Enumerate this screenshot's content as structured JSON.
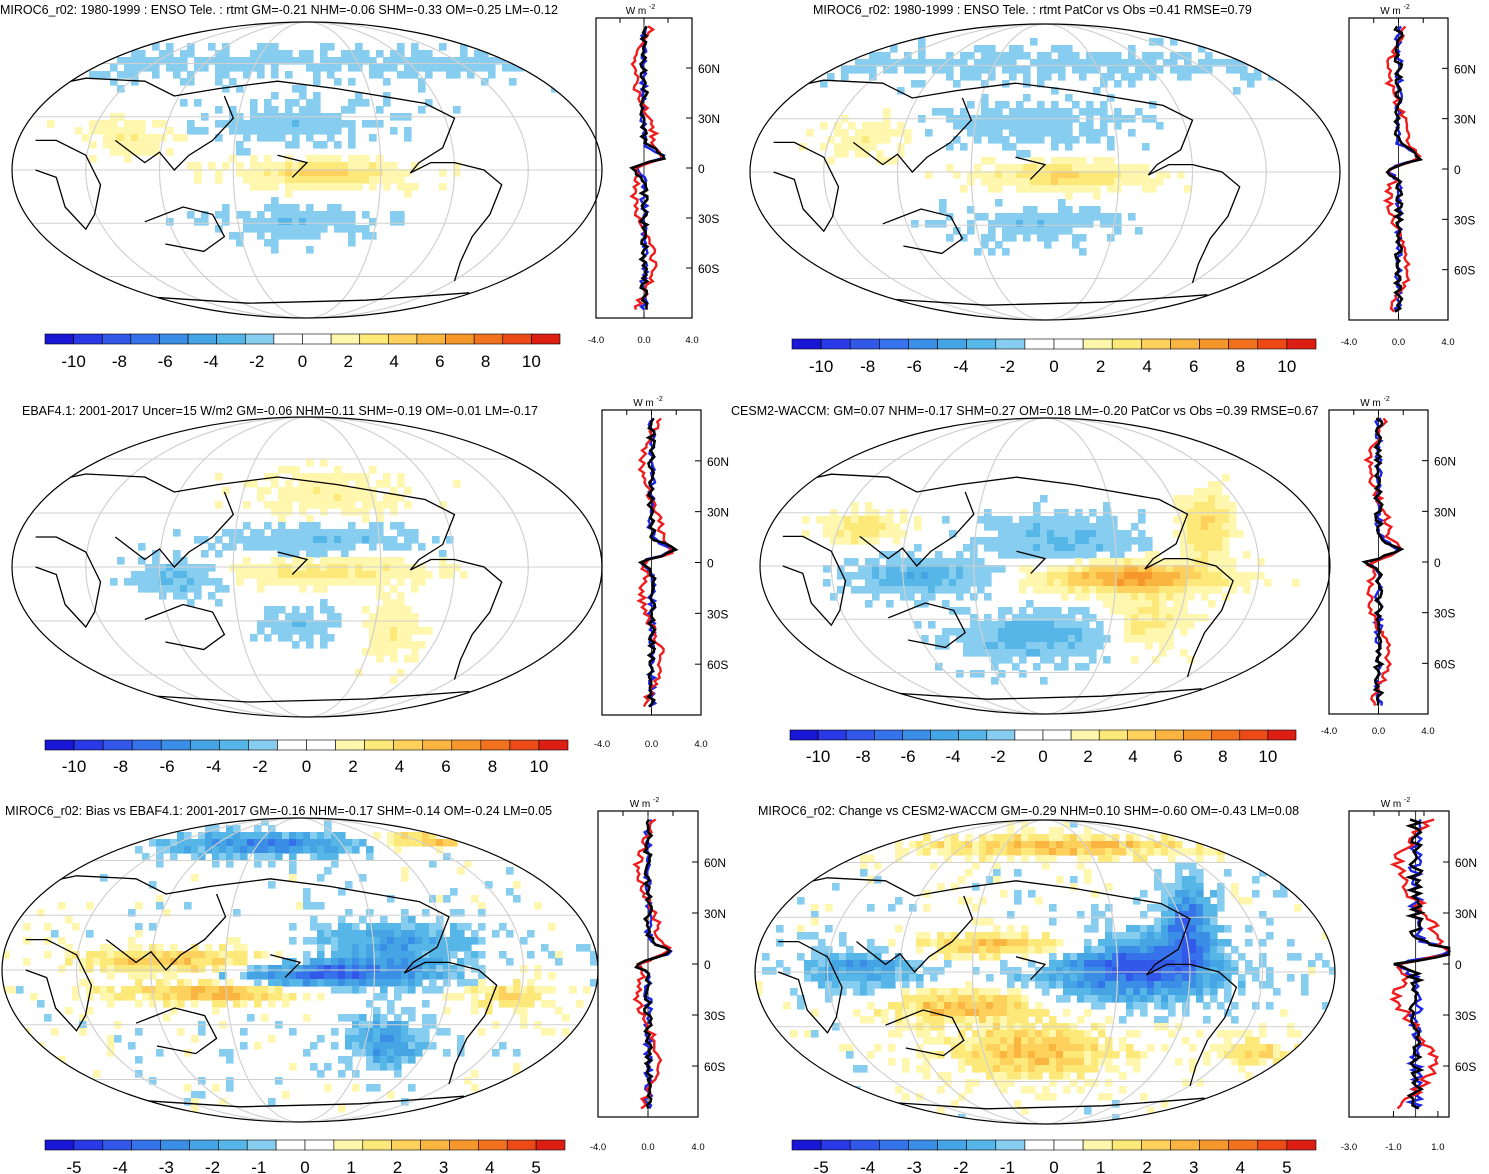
{
  "colors": {
    "levels": [
      "#1a16d6",
      "#2a39e6",
      "#3158e8",
      "#3673ea",
      "#3a8ee6",
      "#44a4e4",
      "#55b6e7",
      "#87cdf0",
      "#ffffff",
      "#ffffff",
      "#fff7ad",
      "#fde87a",
      "#fdd15c",
      "#f9b53f",
      "#f6972c",
      "#f2711f",
      "#ec4b17",
      "#dc1e13"
    ],
    "ocean": "#ffffff",
    "land_outline": "#000000",
    "grid": "#d0d0d0",
    "profile_black": "#000000",
    "profile_red": "#ee1c1c",
    "profile_blue": "#1c24e4"
  },
  "chart_data": [
    {
      "type": "heatmap",
      "id": "p1",
      "title": "MIROC6_r02: 1980-1999 : ENSO Tele. : rtmt GM=-0.21 NHM=-0.06 SHM=-0.33 OM=-0.25 LM=-0.12",
      "colorbar_ticks": [
        "-10",
        "-8",
        "-6",
        "-4",
        "-2",
        "0",
        "2",
        "4",
        "6",
        "8",
        "10"
      ],
      "profile": {
        "unit": "W m",
        "unit_sup": "-2",
        "xlim": [
          -4,
          4
        ],
        "xticks": [
          "-4.0",
          "0.0",
          "4.0"
        ],
        "lat_ticks": [
          "60N",
          "30N",
          "0",
          "30S",
          "60S"
        ]
      }
    },
    {
      "type": "heatmap",
      "id": "p2",
      "title": "MIROC6_r02: 1980-1999 : ENSO Tele. : rtmt PatCor vs Obs =0.41 RMSE=0.79",
      "colorbar_ticks": [
        "-10",
        "-8",
        "-6",
        "-4",
        "-2",
        "0",
        "2",
        "4",
        "6",
        "8",
        "10"
      ],
      "profile": {
        "unit": "W m",
        "unit_sup": "-2",
        "xlim": [
          -4,
          4
        ],
        "xticks": [
          "-4.0",
          "0.0",
          "4.0"
        ],
        "lat_ticks": [
          "60N",
          "30N",
          "0",
          "30S",
          "60S"
        ]
      }
    },
    {
      "type": "heatmap",
      "id": "p3",
      "title": "EBAF4.1: 2001-2017 Uncer=15 W/m2 GM=-0.06 NHM=0.11 SHM=-0.19 OM=-0.01 LM=-0.17",
      "colorbar_ticks": [
        "-10",
        "-8",
        "-6",
        "-4",
        "-2",
        "0",
        "2",
        "4",
        "6",
        "8",
        "10"
      ],
      "profile": {
        "unit": "W m",
        "unit_sup": "-2",
        "xlim": [
          -4,
          4
        ],
        "xticks": [
          "-4.0",
          "0.0",
          "4.0"
        ],
        "lat_ticks": [
          "60N",
          "30N",
          "0",
          "30S",
          "60S"
        ]
      }
    },
    {
      "type": "heatmap",
      "id": "p4",
      "title": "CESM2-WACCM: GM=0.07 NHM=-0.17 SHM=0.27 OM=0.18 LM=-0.20 PatCor vs Obs =0.39 RMSE=0.67",
      "colorbar_ticks": [
        "-10",
        "-8",
        "-6",
        "-4",
        "-2",
        "0",
        "2",
        "4",
        "6",
        "8",
        "10"
      ],
      "profile": {
        "unit": "W m",
        "unit_sup": "-2",
        "xlim": [
          -4,
          4
        ],
        "xticks": [
          "-4.0",
          "0.0",
          "4.0"
        ],
        "lat_ticks": [
          "60N",
          "30N",
          "0",
          "30S",
          "60S"
        ]
      }
    },
    {
      "type": "heatmap",
      "id": "p5",
      "title": "MIROC6_r02: Bias vs EBAF4.1: 2001-2017 GM=-0.16 NHM=-0.17 SHM=-0.14 OM=-0.24 LM=0.05",
      "colorbar_ticks": [
        "-5",
        "-4",
        "-3",
        "-2",
        "-1",
        "0",
        "1",
        "2",
        "3",
        "4",
        "5"
      ],
      "profile": {
        "unit": "W m",
        "unit_sup": "-2",
        "xlim": [
          -4,
          4
        ],
        "xticks": [
          "-4.0",
          "0.0",
          "4.0"
        ],
        "lat_ticks": [
          "60N",
          "30N",
          "0",
          "30S",
          "60S"
        ]
      }
    },
    {
      "type": "heatmap",
      "id": "p6",
      "title": "MIROC6_r02: Change vs CESM2-WACCM GM=-0.29 NHM=0.10 SHM=-0.60 OM=-0.43 LM=0.08",
      "colorbar_ticks": [
        "-5",
        "-4",
        "-3",
        "-2",
        "-1",
        "0",
        "1",
        "2",
        "3",
        "4",
        "5"
      ],
      "profile": {
        "unit": "W m",
        "unit_sup": "-2",
        "xlim": [
          -3,
          1.5
        ],
        "xticks": [
          "-3.0",
          "-1.0",
          "1.0"
        ],
        "lat_ticks": [
          "60N",
          "30N",
          "0",
          "30S",
          "60S"
        ]
      }
    }
  ]
}
